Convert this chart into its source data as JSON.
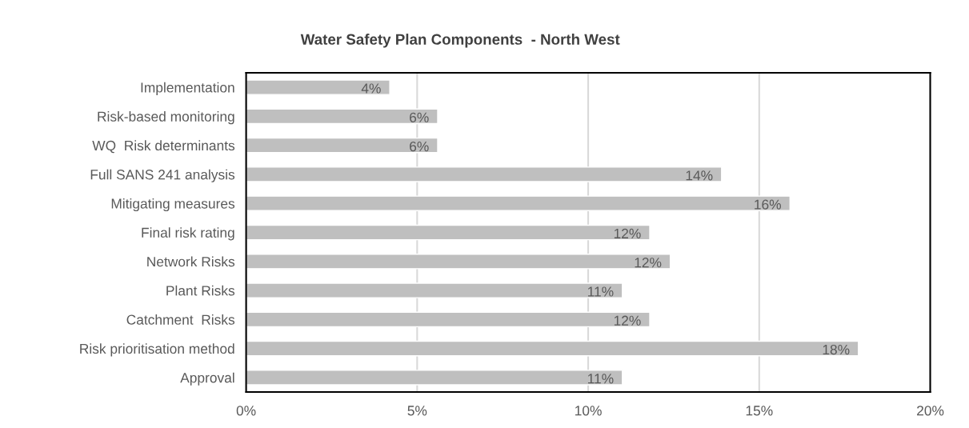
{
  "chart_data": {
    "type": "bar",
    "orientation": "horizontal",
    "title": "Water Safety Plan Components  - North West",
    "categories": [
      "Implementation",
      "Risk-based monitoring",
      "WQ  Risk determinants",
      "Full SANS 241 analysis",
      "Mitigating measures",
      "Final risk rating",
      "Network Risks",
      "Plant Risks",
      "Catchment  Risks",
      "Risk prioritisation method",
      "Approval"
    ],
    "values": [
      4.2,
      5.6,
      5.6,
      13.9,
      15.9,
      11.8,
      12.4,
      11.0,
      11.8,
      17.9,
      11.0
    ],
    "value_labels": [
      "4%",
      "6%",
      "6%",
      "14%",
      "16%",
      "12%",
      "12%",
      "11%",
      "12%",
      "18%",
      "11%"
    ],
    "color": "#bfbfbf",
    "xlim": [
      0,
      20
    ],
    "xticks": [
      {
        "value": 0,
        "label": "0%"
      },
      {
        "value": 5,
        "label": "5%"
      },
      {
        "value": 10,
        "label": "10%"
      },
      {
        "value": 15,
        "label": "15%"
      },
      {
        "value": 20,
        "label": "20%"
      }
    ],
    "grid": "x",
    "legend": false
  }
}
